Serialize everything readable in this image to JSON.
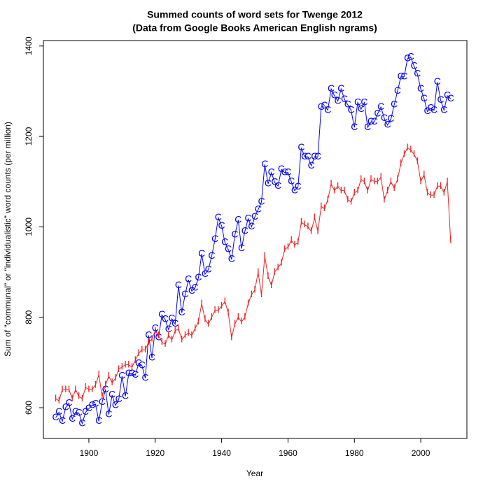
{
  "chart_data": {
    "type": "line",
    "title": "Summed counts of word sets for Twenge 2012",
    "subtitle": "(Data from Google Books American English ngrams)",
    "x_label": "Year",
    "y_label": "Sum of \"communal\" or \"individualistic\" word counts (per million)",
    "x": [
      1890,
      1891,
      1892,
      1893,
      1894,
      1895,
      1896,
      1897,
      1898,
      1899,
      1900,
      1901,
      1902,
      1903,
      1904,
      1905,
      1906,
      1907,
      1908,
      1909,
      1910,
      1911,
      1912,
      1913,
      1914,
      1915,
      1916,
      1917,
      1918,
      1919,
      1920,
      1921,
      1922,
      1923,
      1924,
      1925,
      1926,
      1927,
      1928,
      1929,
      1930,
      1931,
      1932,
      1933,
      1934,
      1935,
      1936,
      1937,
      1938,
      1939,
      1940,
      1941,
      1942,
      1943,
      1944,
      1945,
      1946,
      1947,
      1948,
      1949,
      1950,
      1951,
      1952,
      1953,
      1954,
      1955,
      1956,
      1957,
      1958,
      1959,
      1960,
      1961,
      1962,
      1963,
      1964,
      1965,
      1966,
      1967,
      1968,
      1969,
      1970,
      1971,
      1972,
      1973,
      1974,
      1975,
      1976,
      1977,
      1978,
      1979,
      1980,
      1981,
      1982,
      1983,
      1984,
      1985,
      1986,
      1987,
      1988,
      1989,
      1990,
      1991,
      1992,
      1993,
      1994,
      1995,
      1996,
      1997,
      1998,
      1999,
      2000,
      2001,
      2002,
      2003,
      2004,
      2005,
      2006,
      2007,
      2008,
      2009
    ],
    "series": [
      {
        "marker": "C",
        "color": "#0000ff",
        "values": [
          578,
          590,
          570,
          600,
          610,
          575,
          590,
          588,
          565,
          590,
          598,
          605,
          608,
          570,
          612,
          640,
          585,
          628,
          605,
          618,
          670,
          625,
          675,
          675,
          672,
          698,
          693,
          665,
          760,
          710,
          775,
          755,
          805,
          795,
          773,
          797,
          785,
          870,
          810,
          850,
          883,
          858,
          865,
          887,
          940,
          895,
          905,
          935,
          972,
          1020,
          1002,
          965,
          950,
          928,
          982,
          1015,
          952,
          990,
          1018,
          1000,
          1022,
          1038,
          1055,
          1138,
          1095,
          1120,
          1098,
          1090,
          1127,
          1120,
          1120,
          1100,
          1080,
          1088,
          1175,
          1155,
          1155,
          1135,
          1155,
          1155,
          1265,
          1268,
          1258,
          1305,
          1290,
          1278,
          1305,
          1282,
          1270,
          1258,
          1220,
          1275,
          1260,
          1275,
          1220,
          1232,
          1232,
          1250,
          1265,
          1240,
          1225,
          1238,
          1270,
          1300,
          1332,
          1332,
          1372,
          1375,
          1355,
          1338,
          1305,
          1283,
          1255,
          1262,
          1258,
          1320,
          1280,
          1258,
          1290,
          1283
        ]
      },
      {
        "marker": "I",
        "color": "#ee2222",
        "values": [
          620,
          615,
          640,
          640,
          640,
          620,
          640,
          625,
          620,
          645,
          640,
          640,
          650,
          673,
          625,
          650,
          670,
          655,
          665,
          685,
          690,
          695,
          695,
          690,
          705,
          720,
          728,
          728,
          745,
          752,
          770,
          760,
          745,
          740,
          760,
          750,
          770,
          775,
          750,
          760,
          765,
          760,
          775,
          790,
          830,
          795,
          785,
          800,
          815,
          815,
          825,
          835,
          810,
          755,
          785,
          800,
          790,
          800,
          830,
          850,
          860,
          900,
          850,
          935,
          890,
          870,
          900,
          910,
          920,
          950,
          955,
          970,
          960,
          965,
          1010,
          1005,
          1000,
          990,
          1020,
          990,
          1045,
          1040,
          1060,
          1095,
          1080,
          1090,
          1080,
          1080,
          1060,
          1055,
          1075,
          1080,
          1105,
          1100,
          1080,
          1105,
          1100,
          1100,
          1110,
          1060,
          1080,
          1100,
          1085,
          1105,
          1140,
          1160,
          1175,
          1170,
          1160,
          1145,
          1100,
          1115,
          1075,
          1070,
          1070,
          1090,
          1090,
          1075,
          1100,
          970
        ]
      }
    ],
    "xlim": [
      1886.3,
      2013.9
    ],
    "ylim": [
      532,
      1412
    ],
    "xticks": [
      1900,
      1920,
      1940,
      1960,
      1980,
      2000
    ],
    "yticks": [
      600,
      800,
      1000,
      1200,
      1400
    ],
    "grid": false
  }
}
